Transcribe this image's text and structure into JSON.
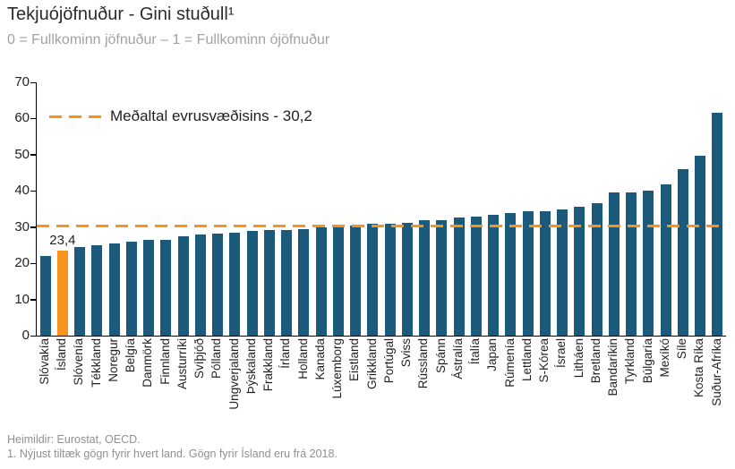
{
  "header": {
    "title": "Tekjuójöfnuður - Gini stuðull¹",
    "subtitle": "0 = Fullkominn jöfnuður – 1 = Fullkominn ójöfnuður"
  },
  "legend": {
    "label": "Meðaltal evrusvæðisins - 30,2"
  },
  "annotation": {
    "iceland_value_label": "23,4"
  },
  "footer": {
    "line1": "Heimildir: Eurostat, OECD.",
    "line2": "1. Nýjust tiltæk gögn fyrir hvert land. Gögn fyrir Ísland eru frá 2018."
  },
  "colors": {
    "bar": "#1b5a7b",
    "highlight": "#f7941e",
    "avg_line": "#f7941e"
  },
  "chart_data": {
    "type": "bar",
    "title": "Tekjuójöfnuður - Gini stuðull",
    "xlabel": "",
    "ylabel": "",
    "ylim": [
      0,
      70
    ],
    "yticks": [
      0,
      10,
      20,
      30,
      40,
      50,
      60,
      70
    ],
    "grid": false,
    "legend_position": "top-left-inside",
    "average_line": 30.2,
    "highlight_category": "Ísland",
    "categories": [
      "Slóvakía",
      "Ísland",
      "Slóvenía",
      "Tékkland",
      "Noregur",
      "Belgía",
      "Danmörk",
      "Finnland",
      "Austurríki",
      "Svíþjóð",
      "Pólland",
      "Ungverjaland",
      "Þýskaland",
      "Frakkland",
      "Írland",
      "Holland",
      "Kanada",
      "Lúxemborg",
      "Eistland",
      "Grikkland",
      "Portúgal",
      "Sviss",
      "Rússland",
      "Spánn",
      "Ástralía",
      "Ítalía",
      "Japan",
      "Rúmenía",
      "Lettland",
      "S-Kórea",
      "Ísrael",
      "Litháen",
      "Bretland",
      "Bandaríkin",
      "Tyrkland",
      "Búlgaría",
      "Mexíkó",
      "Síle",
      "Kosta Ríka",
      "Suður-Afríka"
    ],
    "values": [
      22.0,
      23.4,
      24.4,
      25.0,
      25.4,
      26.0,
      26.4,
      26.5,
      27.5,
      27.9,
      28.2,
      28.5,
      28.9,
      29.2,
      29.2,
      29.5,
      30.0,
      30.3,
      30.5,
      30.8,
      31.0,
      31.1,
      31.8,
      32.0,
      32.6,
      33.0,
      33.4,
      34.0,
      34.5,
      34.5,
      34.8,
      35.7,
      36.6,
      39.5,
      39.7,
      40.0,
      41.8,
      46.0,
      49.7,
      61.7
    ]
  }
}
